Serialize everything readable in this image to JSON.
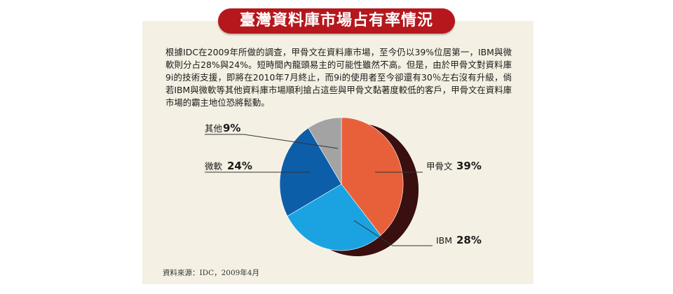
{
  "title": "臺灣資料庫市場占有率情況",
  "body_text": "根據IDC在2009年所做的調查，甲骨文在資料庫市場，至今仍以39%位居第一，IBM與微軟則分占28%與24%。短時間內龍頭易主的可能性雖然不高。但是，由於甲骨文對資料庫9i的技術支援，即將在2010年7月終止，而9i的使用者至今卻還有30％左右沒有升級，倘若IBM與微軟等其他資料庫市場順利搶占這些與甲骨文黏著度較低的客戶，甲骨文在資料庫市場的霸主地位恐將鬆動。",
  "source": "資料來源：IDC，2009年4月",
  "chart_data": {
    "type": "pie",
    "title": "臺灣資料庫市場占有率情況",
    "unit": "%",
    "slices": [
      {
        "name": "甲骨文",
        "value": 39,
        "value_label": "39%",
        "color": "#e8603a"
      },
      {
        "name": "IBM",
        "value": 28,
        "value_label": "28%",
        "color": "#1aa3e0"
      },
      {
        "name": "微軟",
        "value": 24,
        "value_label": "24%",
        "color": "#0d5ea8"
      },
      {
        "name": "其他",
        "value": 9,
        "value_label": "9%",
        "color": "#a3a3a3"
      }
    ],
    "style": "3d-tilted",
    "depth_color": "#3a0f0f"
  }
}
